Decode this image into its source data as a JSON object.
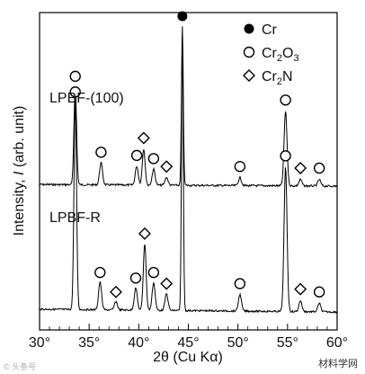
{
  "chart_data": {
    "type": "line",
    "xlabel": "2θ (Cu Kα)",
    "ylabel_prefix": "Intensity, ",
    "ylabel_italic": "I",
    "ylabel_suffix": " (arb. unit)",
    "xlim": [
      30,
      60
    ],
    "x_ticks": [
      30,
      35,
      40,
      45,
      50,
      55,
      60
    ],
    "x_tick_labels": [
      "30°",
      "35°",
      "40°",
      "45°",
      "50°",
      "55°",
      "60°"
    ],
    "legend": [
      {
        "marker": "filled-circle",
        "label": "Cr"
      },
      {
        "marker": "open-circle",
        "label": "Cr",
        "sub": "2",
        "label2": "O",
        "sub2": "3"
      },
      {
        "marker": "diamond",
        "label": "Cr",
        "sub": "2",
        "label2": "N",
        "sub2": ""
      }
    ],
    "series": [
      {
        "name": "LPBF-(100)",
        "peaks": [
          {
            "x": 33.6,
            "h": 0.62,
            "w": 0.13,
            "marker": "open-circle"
          },
          {
            "x": 36.2,
            "h": 0.14,
            "w": 0.15,
            "marker": "open-circle"
          },
          {
            "x": 39.8,
            "h": 0.12,
            "w": 0.15,
            "marker": "open-circle"
          },
          {
            "x": 40.5,
            "h": 0.23,
            "w": 0.14,
            "marker": "diamond"
          },
          {
            "x": 41.5,
            "h": 0.1,
            "w": 0.15,
            "marker": "open-circle"
          },
          {
            "x": 42.8,
            "h": 0.05,
            "w": 0.15,
            "marker": "diamond"
          },
          {
            "x": 44.4,
            "h": 1.0,
            "w": 0.09,
            "marker": "filled-circle"
          },
          {
            "x": 50.2,
            "h": 0.05,
            "w": 0.15,
            "marker": "open-circle"
          },
          {
            "x": 54.8,
            "h": 0.47,
            "w": 0.15,
            "marker": "open-circle"
          },
          {
            "x": 56.3,
            "h": 0.04,
            "w": 0.15,
            "marker": "diamond"
          },
          {
            "x": 58.2,
            "h": 0.04,
            "w": 0.15,
            "marker": "open-circle"
          }
        ]
      },
      {
        "name": "LPBF-R",
        "peaks": [
          {
            "x": 33.6,
            "h": 0.75,
            "w": 0.13,
            "marker": "open-circle"
          },
          {
            "x": 36.1,
            "h": 0.1,
            "w": 0.15,
            "marker": "open-circle"
          },
          {
            "x": 37.7,
            "h": 0.03,
            "w": 0.15,
            "marker": "diamond"
          },
          {
            "x": 39.7,
            "h": 0.08,
            "w": 0.15,
            "marker": "open-circle"
          },
          {
            "x": 40.6,
            "h": 0.24,
            "w": 0.14,
            "marker": "diamond"
          },
          {
            "x": 41.5,
            "h": 0.1,
            "w": 0.15,
            "marker": "open-circle"
          },
          {
            "x": 42.8,
            "h": 0.06,
            "w": 0.15,
            "marker": "diamond"
          },
          {
            "x": 44.4,
            "h": 1.0,
            "w": 0.09,
            "marker": ""
          },
          {
            "x": 50.2,
            "h": 0.06,
            "w": 0.15,
            "marker": "open-circle"
          },
          {
            "x": 54.8,
            "h": 0.52,
            "w": 0.15,
            "marker": "open-circle"
          },
          {
            "x": 56.3,
            "h": 0.04,
            "w": 0.15,
            "marker": "diamond"
          },
          {
            "x": 58.2,
            "h": 0.03,
            "w": 0.15,
            "marker": "open-circle"
          }
        ]
      }
    ]
  },
  "watermark": {
    "left_text": "© 头条号",
    "right_text": "材料学网"
  }
}
